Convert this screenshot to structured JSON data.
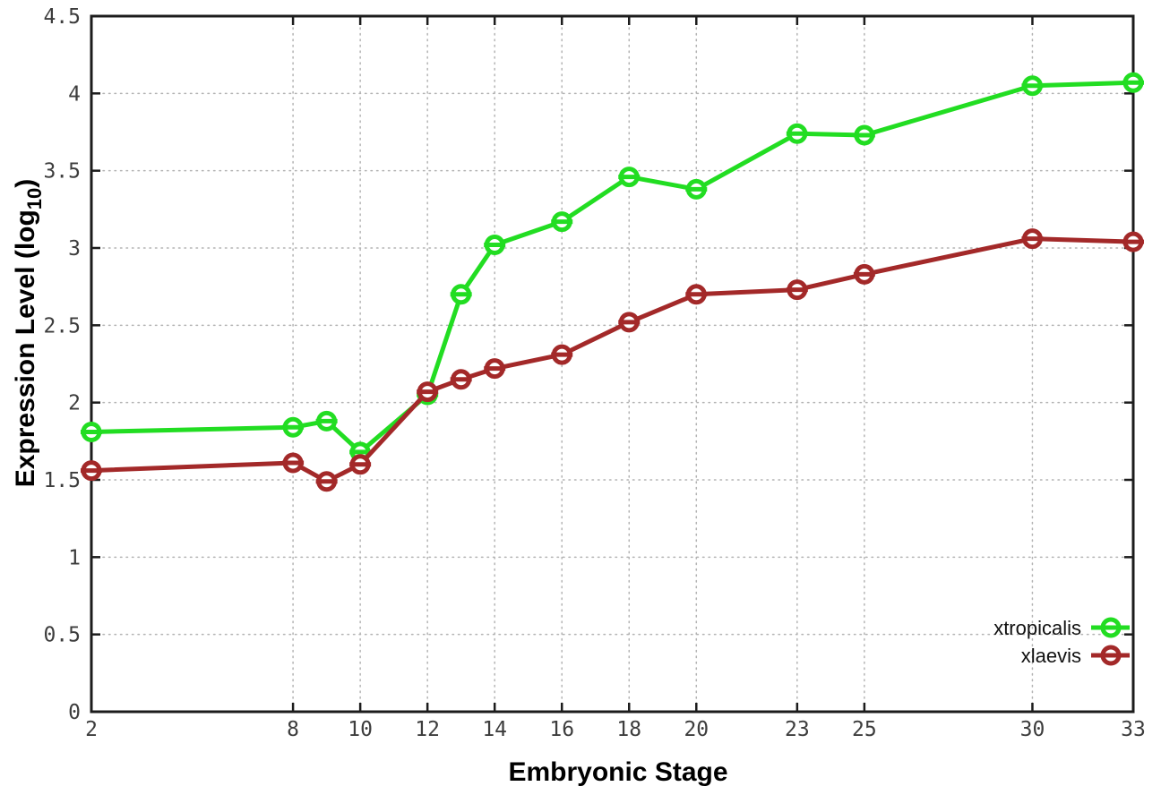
{
  "chart_data": {
    "type": "line",
    "title": "",
    "xlabel": "Embryonic Stage",
    "ylabel_parts": [
      "Expression Level (log",
      "10",
      ")"
    ],
    "x": [
      2,
      8,
      9,
      10,
      12,
      13,
      14,
      16,
      18,
      20,
      23,
      25,
      30,
      33
    ],
    "series": [
      {
        "name": "xtropicalis",
        "color": "#22DD22",
        "values": [
          1.81,
          1.84,
          1.88,
          1.68,
          2.05,
          2.7,
          3.02,
          3.17,
          3.46,
          3.38,
          3.74,
          3.73,
          4.05,
          4.07
        ]
      },
      {
        "name": "xlaevis",
        "color": "#A32929",
        "values": [
          1.56,
          1.61,
          1.49,
          1.6,
          2.07,
          2.15,
          2.22,
          2.31,
          2.52,
          2.7,
          2.73,
          2.83,
          3.06,
          3.04
        ]
      }
    ],
    "xlim": [
      2,
      33
    ],
    "ylim": [
      0,
      4.5
    ],
    "xticks": [
      2,
      8,
      10,
      12,
      14,
      16,
      18,
      20,
      23,
      25,
      30,
      33
    ],
    "yticks": [
      0,
      0.5,
      1,
      1.5,
      2,
      2.5,
      3,
      3.5,
      4,
      4.5
    ],
    "grid": true,
    "grid_style": "dotted",
    "legend_position": "bottom-right",
    "marker": "open-circle-with-dash",
    "axis_color": "#1c1c1c",
    "grid_color": "#b3b3b3",
    "tick_label_color": "#3d3d3d",
    "background_color": "#ffffff"
  }
}
